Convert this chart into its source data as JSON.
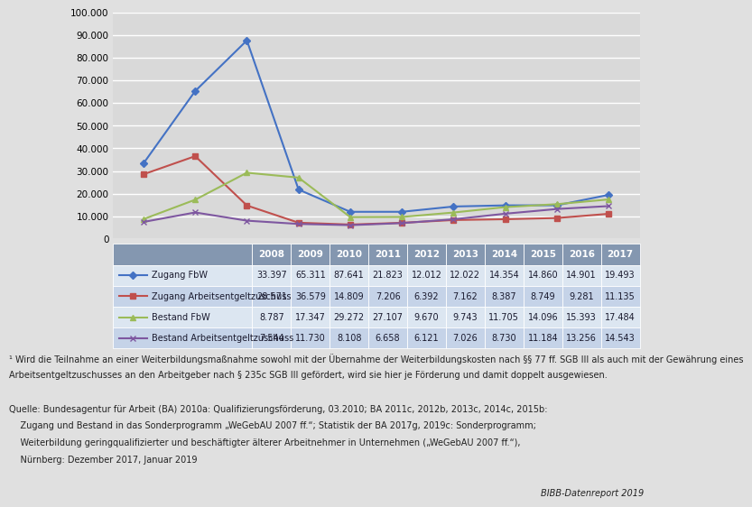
{
  "years": [
    2008,
    2009,
    2010,
    2011,
    2012,
    2013,
    2014,
    2015,
    2016,
    2017
  ],
  "zugang_fbw": [
    33397,
    65311,
    87641,
    21823,
    12012,
    12022,
    14354,
    14860,
    14901,
    19493
  ],
  "zugang_arbeitsentgelt": [
    28571,
    36579,
    14809,
    7206,
    6392,
    7162,
    8387,
    8749,
    9281,
    11135
  ],
  "bestand_fbw": [
    8787,
    17347,
    29272,
    27107,
    9670,
    9743,
    11705,
    14096,
    15393,
    17484
  ],
  "bestand_arbeitsentgelt": [
    7544,
    11730,
    8108,
    6658,
    6121,
    7026,
    8730,
    11184,
    13256,
    14543
  ],
  "color_zugang_fbw": "#4472c4",
  "color_zugang_arbeit": "#c0504d",
  "color_bestand_fbw": "#9bbb59",
  "color_bestand_arbeit": "#7e57a0",
  "chart_bg": "#d9d9d9",
  "outer_bg": "#e0e0e0",
  "table_header_bg": "#8497b0",
  "table_row_bg1": "#dce6f1",
  "table_row_bg2": "#c5d3e8",
  "ylim": [
    0,
    100000
  ],
  "yticks": [
    0,
    10000,
    20000,
    30000,
    40000,
    50000,
    60000,
    70000,
    80000,
    90000,
    100000
  ],
  "table_values": [
    [
      33397,
      65311,
      87641,
      21823,
      12012,
      12022,
      14354,
      14860,
      14901,
      19493
    ],
    [
      28571,
      36579,
      14809,
      7206,
      6392,
      7162,
      8387,
      8749,
      9281,
      11135
    ],
    [
      8787,
      17347,
      29272,
      27107,
      9670,
      9743,
      11705,
      14096,
      15393,
      17484
    ],
    [
      7544,
      11730,
      8108,
      6658,
      6121,
      7026,
      8730,
      11184,
      13256,
      14543
    ]
  ],
  "series_labels": [
    "Zugang FbW",
    "Zugang Arbeitsentgeltzuschuss",
    "Bestand FbW",
    "Bestand Arbeitsentgeltzuschuss"
  ],
  "series_markers": [
    "D",
    "s",
    "^",
    "x"
  ],
  "series_colors": [
    "#4472c4",
    "#c0504d",
    "#9bbb59",
    "#7e57a0"
  ],
  "year_labels": [
    "2008",
    "2009",
    "2010",
    "2011",
    "2012",
    "2013",
    "2014",
    "2015",
    "2016",
    "2017"
  ],
  "footnote1": "¹ Wird die Teilnahme an einer Weiterbildungsmaßnahme sowohl mit der Übernahme der Weiterbildungskosten nach §§ 77 ff. SGB III als auch mit der Gewährung eines",
  "footnote2": "Arbeitsentgeltzuschusses an den Arbeitgeber nach § 235c SGB III gefördert, wird sie hier je Förderung und damit doppelt ausgewiesen.",
  "source_line1": "Quelle: Bundesagentur für Arbeit (BA) 2010a: Qualifizierungsförderung, 03.2010; BA 2011c, 2012b, 2013c, 2014c, 2015b:",
  "source_line2": "    Zugang und Bestand in das Sonderprogramm „WeGebAU 2007 ff.“; Statistik der BA 2017g, 2019c: Sonderprogramm;",
  "source_line3": "    Weiterbildung geringqualifizierter und beschäftigter älterer Arbeitnehmer in Unternehmen („WeGebAU 2007 ff.“),",
  "source_line4": "    Nürnberg: Dezember 2017, Januar 2019",
  "bibb_text": "BIBB-Datenreport 2019"
}
